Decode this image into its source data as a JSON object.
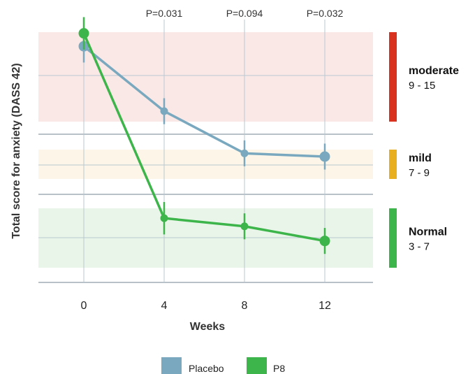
{
  "chart_data": {
    "type": "line",
    "xlabel": "Weeks",
    "ylabel": "Total score for anxiety (DASS 42)",
    "x": [
      0,
      4,
      8,
      12
    ],
    "series": [
      {
        "name": "Placebo",
        "color": "#7aa9bf",
        "values": [
          10.9,
          8.9,
          7.6,
          7.5
        ],
        "err": [
          0.5,
          0.4,
          0.4,
          0.4
        ]
      },
      {
        "name": "P8",
        "color": "#3db54a",
        "values": [
          11.3,
          5.6,
          5.35,
          4.9
        ],
        "err": [
          0.5,
          0.5,
          0.4,
          0.4
        ]
      }
    ],
    "p_values": [
      {
        "x": 4,
        "label": "P=0.031"
      },
      {
        "x": 8,
        "label": "P=0.094"
      },
      {
        "x": 12,
        "label": "P=0.032"
      }
    ],
    "severity_bands": [
      {
        "name": "moderate",
        "range_label": "9 - 15",
        "color": "#d9321f",
        "fill": "#fae8e6"
      },
      {
        "name": "mild",
        "range_label": "7 - 9",
        "color": "#e8b021",
        "fill": "#fdf6e8"
      },
      {
        "name": "Normal",
        "range_label": "3 - 7",
        "color": "#3db54a",
        "fill": "#e8f5e8"
      }
    ]
  },
  "legend": {
    "items": [
      {
        "label": "Placebo",
        "color": "#7aa9bf"
      },
      {
        "label": "P8",
        "color": "#3db54a"
      }
    ]
  }
}
